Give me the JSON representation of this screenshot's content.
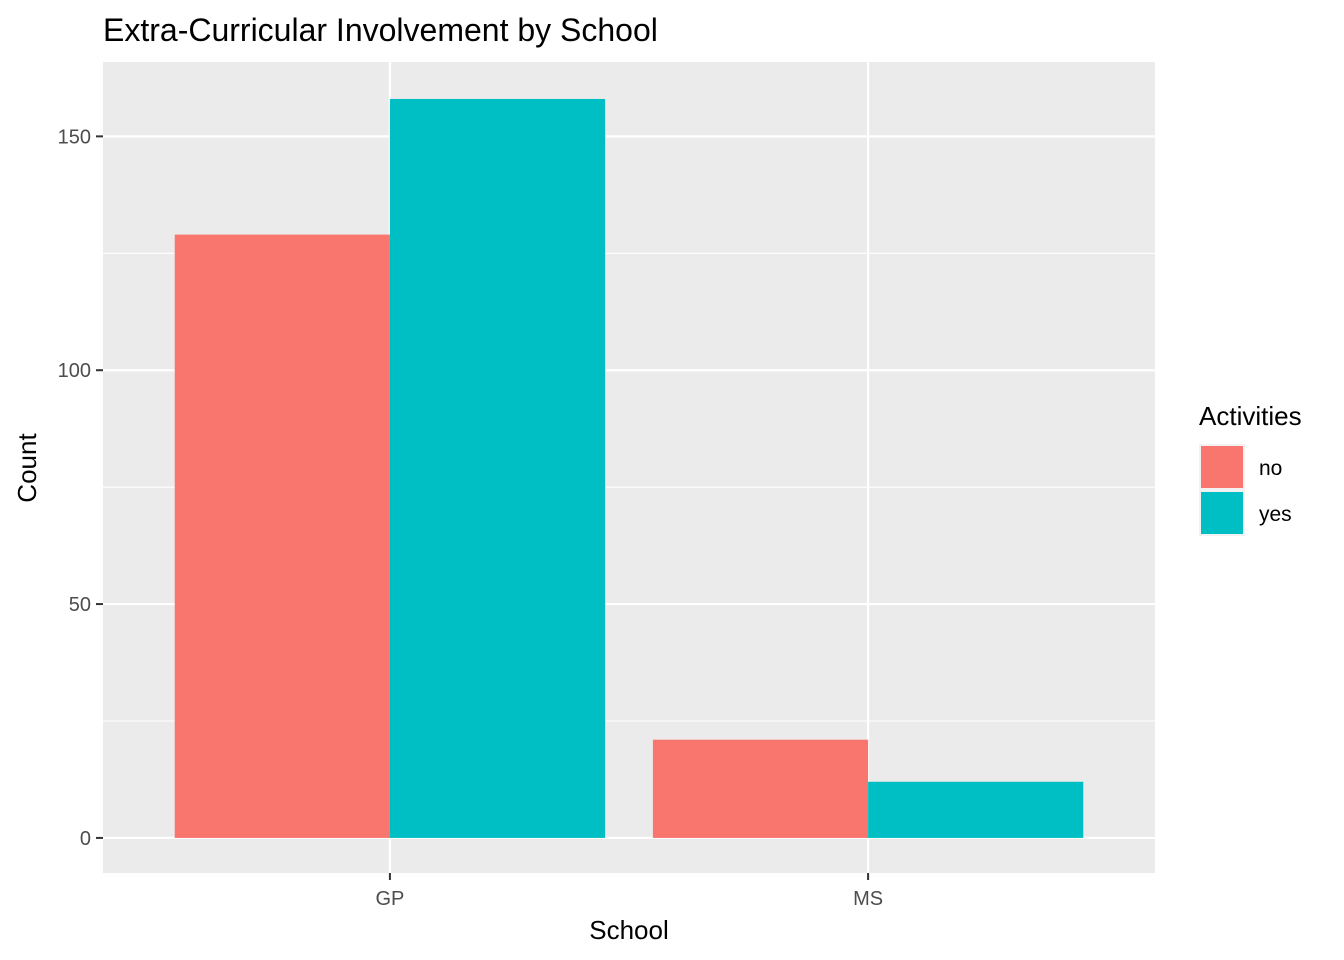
{
  "chart_data": {
    "type": "bar",
    "title": "Extra-Curricular Involvement by School",
    "xlabel": "School",
    "ylabel": "Count",
    "categories": [
      "GP",
      "MS"
    ],
    "series": [
      {
        "name": "no",
        "color": "#F8766D",
        "values": [
          129,
          21
        ]
      },
      {
        "name": "yes",
        "color": "#00BFC4",
        "values": [
          158,
          12
        ]
      }
    ],
    "ylim": [
      -7.5,
      165.9
    ],
    "yticks": [
      0,
      50,
      100,
      150
    ],
    "grid": true,
    "legend": {
      "title": "Activities",
      "position": "right"
    },
    "panel_background": "#EBEBEB",
    "grid_color": "#FFFFFF"
  }
}
